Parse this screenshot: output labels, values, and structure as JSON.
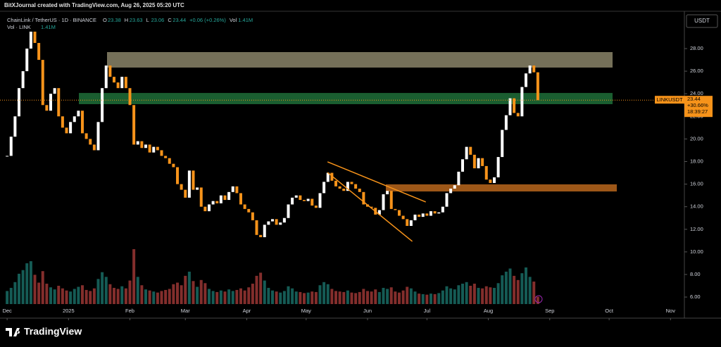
{
  "chart_data": {
    "type": "candlestick",
    "attribution": "BitXJournal created with TradingView.com, Aug 26, 2025 05:20 UTC",
    "symbol": "ChainLink / TetherUS · 1D · BINANCE",
    "legend": {
      "labels": [
        "O",
        "H",
        "L",
        "C"
      ],
      "values": [
        23.38,
        23.63,
        23.06,
        23.44
      ],
      "change": "+0.06 (+0.26%)",
      "vol_label": "Vol",
      "vol_value": "1.41M"
    },
    "volume_legend": {
      "label": "Vol · LINK",
      "value": "1.41M"
    },
    "currency": "USDT",
    "price_tag": {
      "price": 23.44,
      "change": "+30.66%",
      "countdown": "18:39:27"
    },
    "brand": "TradingView",
    "up_color": "#ffffff",
    "down_color": "#f7931a",
    "volume_up_color": "#26a69a",
    "volume_down_color": "#ef5350",
    "series": [
      {
        "name": "LINKUSDT",
        "values": [
          18.5,
          20.2,
          22,
          24.5,
          26,
          28,
          29.5,
          28.5,
          27,
          23,
          22.5,
          24,
          24.5,
          22,
          21,
          20.5,
          21.5,
          22,
          22.5,
          20.5,
          20,
          19.5,
          19,
          21.5,
          24.5,
          26.5,
          25.5,
          25,
          24.5,
          25.5,
          24.5,
          23,
          19.5,
          19.8,
          19.2,
          19.5,
          18.8,
          19.3,
          19,
          18.5,
          18.3,
          17.8,
          17.5,
          16,
          15.5,
          14.8,
          17.2,
          15.5,
          15.7,
          14,
          13.6,
          14.2,
          14.5,
          14.3,
          15,
          14.6,
          15.3,
          15.8,
          15.2,
          14.2,
          13.8,
          13.5,
          12.8,
          11.5,
          11.3,
          12.4,
          12.7,
          12.9,
          12.4,
          12.6,
          13,
          14.2,
          14.8,
          15,
          14.6,
          14.5,
          14.7,
          14.1,
          13.9,
          15.2,
          16.2,
          17,
          16.3,
          15.8,
          15.6,
          15.4,
          16.2,
          16,
          15.6,
          15.3,
          14.2,
          14,
          13.9,
          13.3,
          13.7,
          15.1,
          15.4,
          13.8,
          13.7,
          13.2,
          12.9,
          12.3,
          12.8,
          13.3,
          13.1,
          13.4,
          13.2,
          13.6,
          13.4,
          13.5,
          14,
          15.2,
          15.6,
          15.9,
          17.1,
          18.2,
          19.3,
          18.6,
          17.4,
          18.3,
          17.6,
          16.4,
          16.1,
          16.6,
          18.4,
          20.8,
          22.1,
          23.6,
          22.3,
          22,
          24.6,
          25.8,
          26.5,
          25.9,
          23.44
        ]
      }
    ],
    "volume": [
      2.5,
      3.1,
      4.2,
      5.8,
      6.5,
      7.8,
      8.2,
      5.6,
      4.1,
      6.3,
      3.9,
      3.2,
      2.8,
      3.5,
      3.0,
      2.6,
      2.4,
      2.9,
      3.3,
      3.6,
      2.7,
      2.5,
      3.0,
      4.8,
      6.1,
      5.2,
      3.8,
      3.1,
      2.9,
      3.4,
      3.0,
      4.5,
      10.5,
      5.2,
      3.6,
      2.8,
      2.6,
      2.4,
      2.2,
      2.5,
      2.7,
      2.9,
      3.8,
      4.1,
      3.6,
      5.4,
      6.2,
      4.4,
      3.3,
      4.6,
      4.0,
      2.9,
      2.5,
      2.3,
      2.6,
      2.4,
      2.8,
      2.5,
      2.7,
      3.0,
      2.6,
      3.2,
      3.9,
      5.4,
      6.0,
      4.5,
      3.1,
      2.6,
      2.4,
      2.2,
      2.5,
      3.4,
      3.0,
      2.4,
      2.3,
      2.1,
      2.2,
      2.4,
      2.3,
      3.6,
      4.2,
      3.8,
      2.9,
      2.5,
      2.4,
      2.3,
      2.6,
      2.2,
      2.1,
      2.3,
      2.9,
      2.5,
      2.4,
      2.8,
      2.3,
      3.1,
      2.9,
      3.2,
      2.4,
      2.2,
      2.6,
      3.3,
      3.0,
      2.4,
      2.0,
      1.9,
      1.8,
      2.0,
      1.9,
      2.1,
      2.6,
      3.4,
      3.0,
      2.8,
      3.6,
      3.9,
      4.2,
      3.5,
      3.9,
      3.1,
      3.0,
      3.4,
      3.2,
      3.1,
      4.0,
      5.5,
      6.2,
      6.8,
      5.4,
      4.6,
      5.9,
      7.0,
      5.2,
      4.3,
      1.41
    ],
    "zones": [
      {
        "from": 26.32,
        "to": 27.69,
        "color": "#8a8468"
      },
      {
        "from": 23.08,
        "to": 24.07,
        "color": "#1f6e38"
      },
      {
        "from": 15.35,
        "to": 15.98,
        "color": "#b8661c"
      }
    ],
    "trendlines": [
      {
        "x": [
          80.9,
          105.7
        ],
        "y": [
          17.97,
          14.42
        ],
        "color": "#f7931a"
      },
      {
        "x": [
          80.9,
          102.3
        ],
        "y": [
          17.03,
          10.93
        ],
        "color": "#f7931a"
      }
    ],
    "xlim": [
      -1.8,
      171
    ],
    "xticks": [
      {
        "value": 0,
        "label": "Dec"
      },
      {
        "value": 15.5,
        "label": "2025"
      },
      {
        "value": 31,
        "label": "Feb"
      },
      {
        "value": 45,
        "label": "Mar"
      },
      {
        "value": 60.5,
        "label": "Apr"
      },
      {
        "value": 75.5,
        "label": "May"
      },
      {
        "value": 91,
        "label": "Jun"
      },
      {
        "value": 106,
        "label": "Jul"
      },
      {
        "value": 121.5,
        "label": "Aug"
      },
      {
        "value": 137,
        "label": "Sep"
      },
      {
        "value": 152,
        "label": "Oct"
      },
      {
        "value": 167.5,
        "label": "Nov"
      }
    ],
    "ylim": [
      5.38,
      31.18
    ],
    "yticks": [
      {
        "value": 6,
        "label": "6.00"
      },
      {
        "value": 8,
        "label": "8.00"
      },
      {
        "value": 10,
        "label": "10.00"
      },
      {
        "value": 12,
        "label": "12.00"
      },
      {
        "value": 14,
        "label": "14.00"
      },
      {
        "value": 16,
        "label": "16.00"
      },
      {
        "value": 18,
        "label": "18.00"
      },
      {
        "value": 20,
        "label": "20.00"
      },
      {
        "value": 22,
        "label": "22.00"
      },
      {
        "value": 24,
        "label": "24.00"
      },
      {
        "value": 26,
        "label": "26.00"
      },
      {
        "value": 28,
        "label": "28.00"
      }
    ]
  }
}
